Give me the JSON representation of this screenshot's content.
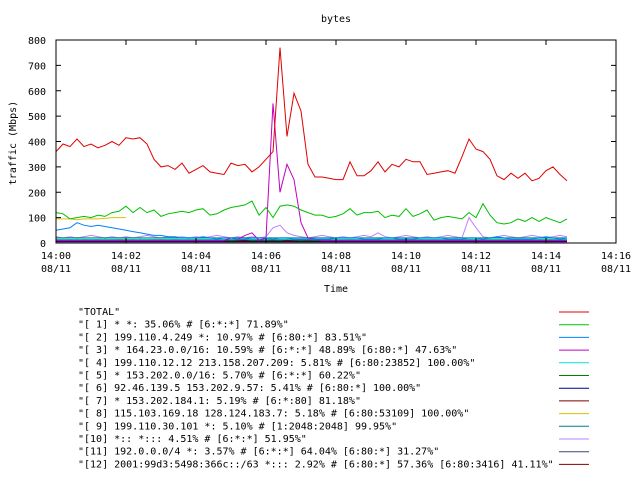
{
  "chart_data": {
    "type": "line",
    "title": "bytes",
    "xlabel": "Time",
    "ylabel": "traffic (Mbps)",
    "ylim": [
      0,
      800
    ],
    "yticks": [
      0,
      100,
      200,
      300,
      400,
      500,
      600,
      700,
      800
    ],
    "xlim": [
      0,
      16
    ],
    "xticks": [
      {
        "minute": 0,
        "time": "14:00",
        "date": "08/11"
      },
      {
        "minute": 2,
        "time": "14:02",
        "date": "08/11"
      },
      {
        "minute": 4,
        "time": "14:04",
        "date": "08/11"
      },
      {
        "minute": 6,
        "time": "14:06",
        "date": "08/11"
      },
      {
        "minute": 8,
        "time": "14:08",
        "date": "08/11"
      },
      {
        "minute": 10,
        "time": "14:10",
        "date": "08/11"
      },
      {
        "minute": 12,
        "time": "14:12",
        "date": "08/11"
      },
      {
        "minute": 14,
        "time": "14:14",
        "date": "08/11"
      },
      {
        "minute": 16,
        "time": "14:16",
        "date": "08/11"
      }
    ],
    "grid": false,
    "legend_position": "bottom",
    "x": [
      0,
      0.2,
      0.4,
      0.6,
      0.8,
      1,
      1.2,
      1.4,
      1.6,
      1.8,
      2,
      2.2,
      2.4,
      2.6,
      2.8,
      3,
      3.2,
      3.4,
      3.6,
      3.8,
      4,
      4.2,
      4.4,
      4.6,
      4.8,
      5,
      5.2,
      5.4,
      5.6,
      5.8,
      6,
      6.2,
      6.4,
      6.6,
      6.8,
      7,
      7.2,
      7.4,
      7.6,
      7.8,
      8,
      8.2,
      8.4,
      8.6,
      8.8,
      9,
      9.2,
      9.4,
      9.6,
      9.8,
      10,
      10.2,
      10.4,
      10.6,
      10.8,
      11,
      11.2,
      11.4,
      11.6,
      11.8,
      12,
      12.2,
      12.4,
      12.6,
      12.8,
      13,
      13.2,
      13.4,
      13.6,
      13.8,
      14,
      14.2,
      14.4,
      14.6
    ],
    "series": [
      {
        "name": "\"TOTAL\"",
        "color": "#e00000",
        "values": [
          360,
          390,
          380,
          410,
          380,
          390,
          375,
          385,
          400,
          385,
          415,
          410,
          415,
          390,
          330,
          300,
          305,
          290,
          315,
          275,
          290,
          305,
          280,
          275,
          270,
          315,
          305,
          310,
          280,
          300,
          330,
          360,
          770,
          420,
          590,
          520,
          310,
          260,
          260,
          255,
          250,
          250,
          320,
          265,
          265,
          285,
          320,
          280,
          310,
          300,
          330,
          320,
          320,
          270,
          275,
          280,
          285,
          275,
          340,
          410,
          370,
          360,
          330,
          265,
          250,
          275,
          255,
          275,
          245,
          255,
          285,
          300,
          270,
          245
        ]
      },
      {
        "name": "\"[ 1] * *: 35.06% # [6:*:*] 71.89%\"",
        "color": "#00c000",
        "values": [
          120,
          115,
          95,
          100,
          105,
          100,
          110,
          105,
          120,
          125,
          145,
          120,
          140,
          120,
          130,
          105,
          115,
          120,
          125,
          120,
          130,
          135,
          110,
          115,
          130,
          140,
          145,
          150,
          165,
          110,
          140,
          100,
          145,
          150,
          145,
          130,
          120,
          110,
          110,
          100,
          105,
          115,
          135,
          110,
          120,
          120,
          125,
          100,
          110,
          105,
          135,
          105,
          115,
          130,
          90,
          100,
          105,
          100,
          95,
          120,
          100,
          155,
          110,
          80,
          75,
          80,
          95,
          85,
          100,
          85,
          100,
          90,
          80,
          95
        ]
      },
      {
        "name": "\"[ 2] 199.110.4.249 *: 10.97% # [6:80:*] 83.51%\"",
        "color": "#0080ff",
        "values": [
          50,
          55,
          60,
          80,
          70,
          65,
          70,
          65,
          60,
          55,
          50,
          45,
          40,
          35,
          30,
          30,
          25,
          25,
          20,
          20,
          20,
          25,
          20,
          15,
          20,
          20,
          15,
          15,
          20,
          20,
          20,
          15,
          20,
          20,
          15,
          15,
          15,
          15,
          15,
          15,
          20,
          20,
          20,
          20,
          15,
          15,
          15,
          20,
          20,
          15,
          15,
          15,
          20,
          20,
          20,
          20,
          15,
          15,
          15,
          20,
          20,
          15,
          20,
          25,
          20,
          15,
          15,
          15,
          15,
          20,
          25,
          20,
          15,
          20
        ]
      },
      {
        "name": "\"[ 3] * 164.23.0.0/16: 10.59% # [6:*:*] 48.89% [6:80:*] 47.63%\"",
        "color": "#c000c0",
        "values": [
          10,
          10,
          10,
          10,
          10,
          10,
          10,
          10,
          10,
          10,
          10,
          10,
          10,
          10,
          10,
          10,
          10,
          10,
          10,
          10,
          10,
          10,
          10,
          10,
          10,
          20,
          15,
          30,
          40,
          10,
          20,
          550,
          200,
          310,
          250,
          80,
          20,
          15,
          10,
          10,
          10,
          10,
          10,
          10,
          10,
          10,
          10,
          10,
          10,
          10,
          10,
          10,
          10,
          10,
          10,
          10,
          10,
          10,
          10,
          10,
          10,
          10,
          10,
          10,
          10,
          10,
          10,
          10,
          10,
          10,
          10,
          10,
          10,
          10
        ]
      },
      {
        "name": "\"[ 4] 199.110.12.12 213.158.207.209: 5.81% # [6:80:23852] 100.00%\"",
        "color": "#00e0e0",
        "values": [
          15,
          15,
          15,
          15,
          15,
          15,
          15,
          15,
          15,
          15,
          15,
          15,
          15,
          15,
          15,
          15,
          15,
          15,
          15,
          15,
          15,
          15,
          15,
          15,
          15,
          15,
          15,
          15,
          15,
          15,
          15,
          15,
          15,
          15,
          15,
          15,
          15,
          15,
          15,
          15,
          15,
          15,
          15,
          15,
          15,
          15,
          15,
          15,
          15,
          15,
          15,
          15,
          15,
          15,
          15,
          15,
          15,
          15,
          15,
          15,
          15,
          15,
          15,
          15,
          15,
          15,
          15,
          15,
          15,
          15,
          15,
          15,
          15,
          15
        ]
      },
      {
        "name": "\"[ 5] * 153.202.0.0/16: 5.70% # [6:*:*] 60.22%\"",
        "color": "#008000",
        "values": [
          10,
          12,
          10,
          15,
          10,
          12,
          10,
          15,
          12,
          10,
          12,
          10,
          15,
          12,
          10,
          10,
          12,
          10,
          12,
          15,
          10,
          12,
          10,
          15,
          12,
          10,
          12,
          15,
          10,
          12,
          10,
          12,
          10,
          15,
          12,
          10,
          12,
          10,
          12,
          10,
          15,
          12,
          10,
          12,
          10,
          12,
          15,
          10,
          12,
          10,
          15,
          12,
          10,
          12,
          10,
          12,
          10,
          15,
          12,
          10,
          12,
          10,
          15,
          12,
          10,
          12,
          10,
          12,
          15,
          10,
          12,
          10,
          12,
          10
        ]
      },
      {
        "name": "\"[ 6] 92.46.139.5 153.202.9.57: 5.41% # [6:80:*] 100.00%\"",
        "color": "#000080",
        "values": [
          5,
          5,
          5,
          5,
          5,
          5,
          5,
          5,
          5,
          5,
          5,
          5,
          5,
          5,
          5,
          5,
          5,
          5,
          5,
          5,
          5,
          5,
          5,
          5,
          5,
          5,
          5,
          5,
          5,
          5,
          5,
          5,
          5,
          5,
          5,
          5,
          5,
          5,
          5,
          5,
          5,
          5,
          5,
          5,
          5,
          5,
          5,
          5,
          5,
          5,
          5,
          5,
          5,
          5,
          5,
          5,
          5,
          5,
          5,
          5,
          5,
          5,
          5,
          5,
          5,
          5,
          5,
          5,
          5,
          5,
          5,
          5,
          5,
          5
        ]
      },
      {
        "name": "\"[ 7] * 153.202.184.1: 5.19% # [6:*:80] 81.18%\"",
        "color": "#800000",
        "values": [
          8,
          8,
          8,
          8,
          8,
          8,
          8,
          8,
          8,
          8,
          8,
          8,
          8,
          8,
          8,
          8,
          8,
          8,
          8,
          8,
          8,
          8,
          8,
          8,
          8,
          8,
          8,
          8,
          8,
          8,
          8,
          8,
          8,
          8,
          8,
          8,
          8,
          8,
          8,
          8,
          8,
          8,
          8,
          8,
          8,
          8,
          8,
          8,
          8,
          8,
          8,
          8,
          8,
          8,
          8,
          8,
          8,
          8,
          8,
          8,
          8,
          8,
          8,
          8,
          8,
          8,
          8,
          8,
          8,
          8,
          8,
          8,
          8,
          8
        ]
      },
      {
        "name": "\"[ 8] 115.103.169.18 128.124.183.7: 5.18% # [6:80:53109] 100.00%\"",
        "color": "#e0c000",
        "values": [
          95,
          95,
          95,
          92,
          95,
          95,
          95,
          97,
          100,
          100,
          100,
          null,
          null,
          null,
          null,
          null,
          null,
          null,
          null,
          null,
          null,
          null,
          null,
          null,
          null,
          null,
          null,
          null,
          null,
          null,
          null,
          null,
          null,
          null,
          null,
          null,
          null,
          null,
          null,
          null,
          null,
          null,
          null,
          null,
          null,
          null,
          null,
          null,
          null,
          null,
          null,
          null,
          null,
          null,
          null,
          null,
          null,
          null,
          null,
          null,
          null,
          null,
          null,
          null,
          null,
          null,
          null,
          null,
          null,
          null,
          null,
          null,
          null,
          null
        ]
      },
      {
        "name": "\"[ 9] 199.110.30.101 *: 5.10% # [1:2048:2048] 99.95%\"",
        "color": "#008080",
        "values": [
          20,
          20,
          20,
          20,
          20,
          20,
          20,
          20,
          20,
          20,
          20,
          20,
          20,
          20,
          20,
          20,
          20,
          20,
          20,
          20,
          20,
          20,
          20,
          20,
          20,
          20,
          20,
          20,
          20,
          20,
          20,
          20,
          20,
          20,
          20,
          20,
          20,
          20,
          20,
          20,
          20,
          20,
          20,
          20,
          20,
          20,
          20,
          20,
          20,
          20,
          20,
          20,
          20,
          20,
          20,
          20,
          20,
          20,
          20,
          20,
          20,
          20,
          20,
          20,
          20,
          20,
          20,
          20,
          20,
          20,
          20,
          20,
          20,
          20
        ]
      },
      {
        "name": "\"[10] *:: *::: 4.51% # [6:*:*] 51.95%\"",
        "color": "#c080ff",
        "values": [
          25,
          20,
          25,
          20,
          25,
          30,
          25,
          20,
          25,
          20,
          25,
          20,
          25,
          30,
          25,
          20,
          25,
          20,
          25,
          20,
          25,
          20,
          25,
          30,
          25,
          20,
          25,
          20,
          25,
          20,
          25,
          60,
          70,
          40,
          30,
          25,
          20,
          25,
          30,
          25,
          20,
          25,
          20,
          25,
          30,
          25,
          40,
          25,
          20,
          25,
          30,
          25,
          20,
          25,
          20,
          25,
          30,
          25,
          20,
          100,
          60,
          25,
          20,
          25,
          30,
          25,
          20,
          25,
          30,
          25,
          20,
          25,
          30,
          25
        ]
      },
      {
        "name": "\"[11] 192.0.0.0/4 *: 3.57% # [6:*:*] 64.04% [6:80:*] 31.27%\"",
        "color": "#404080",
        "values": [
          6,
          6,
          6,
          6,
          6,
          6,
          6,
          6,
          6,
          6,
          6,
          6,
          6,
          6,
          6,
          6,
          6,
          6,
          6,
          6,
          6,
          6,
          6,
          6,
          6,
          6,
          6,
          6,
          6,
          6,
          6,
          6,
          6,
          6,
          6,
          6,
          6,
          6,
          6,
          6,
          6,
          6,
          6,
          6,
          6,
          6,
          6,
          6,
          6,
          6,
          6,
          6,
          6,
          6,
          6,
          6,
          6,
          6,
          6,
          6,
          6,
          6,
          6,
          6,
          6,
          6,
          6,
          6,
          6,
          6,
          6,
          6,
          6,
          6
        ]
      },
      {
        "name": "\"[12] 2001:99d3:5498:366c::/63 *::: 2.92% # [6:80:*] 57.36% [6:80:3416] 41.11%\"",
        "color": "#800000",
        "values": [
          12,
          12,
          12,
          12,
          12,
          12,
          12,
          12,
          12,
          12,
          12,
          12,
          12,
          12,
          12,
          12,
          12,
          12,
          12,
          12,
          12,
          12,
          12,
          12,
          12,
          12,
          12,
          12,
          12,
          12,
          12,
          12,
          12,
          12,
          12,
          12,
          12,
          12,
          12,
          12,
          12,
          12,
          12,
          12,
          12,
          12,
          12,
          12,
          12,
          12,
          12,
          12,
          12,
          12,
          12,
          12,
          12,
          12,
          12,
          12,
          12,
          12,
          12,
          12,
          12,
          12,
          12,
          12,
          12,
          12,
          12,
          12,
          12,
          12
        ]
      }
    ]
  }
}
